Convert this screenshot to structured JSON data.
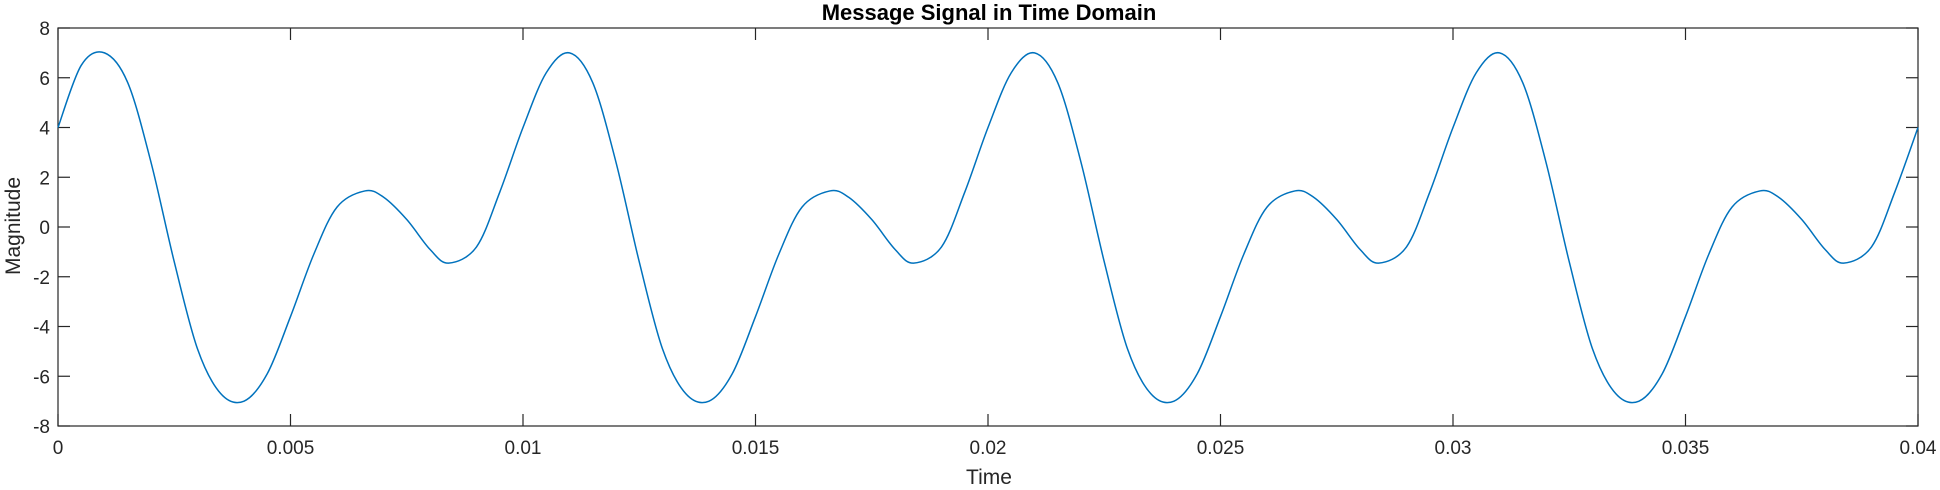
{
  "chart_data": {
    "type": "line",
    "title": "Message Signal in Time Domain",
    "xlabel": "Time",
    "ylabel": "Magnitude",
    "xlim": [
      0,
      0.04
    ],
    "ylim": [
      -8,
      8
    ],
    "x_ticks": [
      0,
      0.005,
      0.01,
      0.015,
      0.02,
      0.025,
      0.03,
      0.035,
      0.04
    ],
    "x_tick_labels": [
      "0",
      "0.005",
      "0.01",
      "0.015",
      "0.02",
      "0.025",
      "0.03",
      "0.035",
      "0.04"
    ],
    "y_ticks": [
      -8,
      -6,
      -4,
      -2,
      0,
      2,
      4,
      6,
      8
    ],
    "y_tick_labels": [
      "-8",
      "-6",
      "-4",
      "-2",
      "0",
      "2",
      "4",
      "6",
      "8"
    ],
    "grid": false,
    "line_color": "#0072BD",
    "series": [
      {
        "x": [
          0,
          0.0005,
          0.001,
          0.0015,
          0.002,
          0.0025,
          0.003,
          0.0035,
          0.004,
          0.0045,
          0.005,
          0.0055,
          0.006,
          0.0066,
          0.007,
          0.0075,
          0.008,
          0.0084,
          0.009,
          0.0095,
          0.01,
          0.0105,
          0.011,
          0.0115,
          0.012,
          0.0125,
          0.013,
          0.0135,
          0.014,
          0.0145,
          0.015,
          0.0155,
          0.016,
          0.0166,
          0.017,
          0.0175,
          0.018,
          0.0184,
          0.019,
          0.0195,
          0.02,
          0.0205,
          0.021,
          0.0215,
          0.022,
          0.0225,
          0.023,
          0.0235,
          0.024,
          0.0245,
          0.025,
          0.0255,
          0.026,
          0.0266,
          0.027,
          0.0275,
          0.028,
          0.0284,
          0.029,
          0.0295,
          0.03,
          0.0305,
          0.031,
          0.0315,
          0.032,
          0.0325,
          0.033,
          0.0335,
          0.034,
          0.0345,
          0.035,
          0.0355,
          0.036,
          0.0366,
          0.037,
          0.0375,
          0.038,
          0.0384,
          0.039,
          0.0395,
          0.04
        ],
        "y": [
          4,
          6.5,
          7,
          5.8,
          2.6,
          -1.4,
          -4.9,
          -6.7,
          -7,
          -5.9,
          -3.6,
          -1.1,
          0.8,
          1.45,
          1.2,
          0.3,
          -0.9,
          -1.45,
          -0.8,
          1.4,
          4,
          6.2,
          7,
          5.8,
          2.6,
          -1.4,
          -4.9,
          -6.7,
          -7,
          -5.9,
          -3.6,
          -1.1,
          0.8,
          1.45,
          1.2,
          0.3,
          -0.9,
          -1.45,
          -0.8,
          1.4,
          4,
          6.2,
          7,
          5.8,
          2.6,
          -1.4,
          -4.9,
          -6.7,
          -7,
          -5.9,
          -3.6,
          -1.1,
          0.8,
          1.45,
          1.2,
          0.3,
          -0.9,
          -1.45,
          -0.8,
          1.4,
          4,
          6.2,
          7,
          5.8,
          2.6,
          -1.4,
          -4.9,
          -6.7,
          -7,
          -5.9,
          -3.6,
          -1.1,
          0.8,
          1.45,
          1.2,
          0.3,
          -0.9,
          -1.45,
          -0.8,
          1.4,
          4
        ]
      }
    ]
  }
}
